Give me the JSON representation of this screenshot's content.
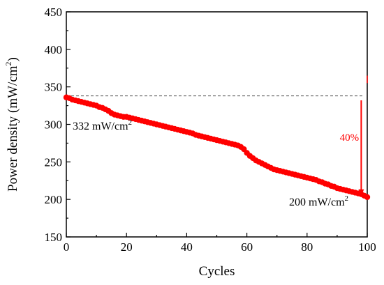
{
  "chart_data": {
    "type": "scatter",
    "xlabel": "Cycles",
    "ylabel_main": "Power density (mW/cm",
    "ylabel_sup": "2",
    "ylabel_end": ")",
    "xlim": [
      0,
      100
    ],
    "ylim": [
      150,
      450
    ],
    "x_ticks": [
      "0",
      "20",
      "40",
      "60",
      "80",
      "100"
    ],
    "y_ticks": [
      "150",
      "200",
      "250",
      "300",
      "350",
      "400",
      "450"
    ],
    "grid": false,
    "marker_color": "#ff0000",
    "reference_line_y": 338,
    "x": [
      0,
      1,
      2,
      3,
      4,
      5,
      6,
      7,
      8,
      9,
      10,
      11,
      12,
      13,
      14,
      15,
      16,
      17,
      18,
      19,
      20,
      21,
      22,
      23,
      24,
      25,
      26,
      27,
      28,
      29,
      30,
      31,
      32,
      33,
      34,
      35,
      36,
      37,
      38,
      39,
      40,
      41,
      42,
      43,
      44,
      45,
      46,
      47,
      48,
      49,
      50,
      51,
      52,
      53,
      54,
      55,
      56,
      57,
      58,
      59,
      60,
      61,
      62,
      63,
      64,
      65,
      66,
      67,
      68,
      69,
      70,
      71,
      72,
      73,
      74,
      75,
      76,
      77,
      78,
      79,
      80,
      81,
      82,
      83,
      84,
      85,
      86,
      87,
      88,
      89,
      90,
      91,
      92,
      93,
      94,
      95,
      96,
      97,
      98,
      99,
      100
    ],
    "y": [
      336,
      335,
      333,
      332,
      331,
      330,
      329,
      328,
      327,
      326,
      325,
      323,
      322,
      320,
      318,
      315,
      313,
      312,
      311,
      310,
      310,
      309,
      308,
      307,
      306,
      305,
      304,
      303,
      302,
      301,
      300,
      299,
      298,
      297,
      296,
      295,
      294,
      293,
      292,
      291,
      290,
      289,
      288,
      286,
      285,
      284,
      283,
      282,
      281,
      280,
      279,
      278,
      277,
      276,
      275,
      274,
      273,
      272,
      270,
      267,
      262,
      258,
      255,
      252,
      250,
      248,
      246,
      244,
      242,
      240,
      239,
      238,
      237,
      236,
      235,
      234,
      233,
      232,
      231,
      230,
      229,
      228,
      227,
      226,
      224,
      223,
      221,
      220,
      218,
      217,
      215,
      214,
      213,
      212,
      211,
      210,
      209,
      208,
      207,
      205,
      203
    ]
  },
  "annotations": {
    "start_label_main": "332 mW/cm",
    "start_label_sup": "2",
    "end_label_main": "200 mW/cm",
    "end_label_sup": "2",
    "drop_label": "40%",
    "drop_color": "#ff0000",
    "drop_arrow_from": 332,
    "drop_arrow_to": 205
  }
}
